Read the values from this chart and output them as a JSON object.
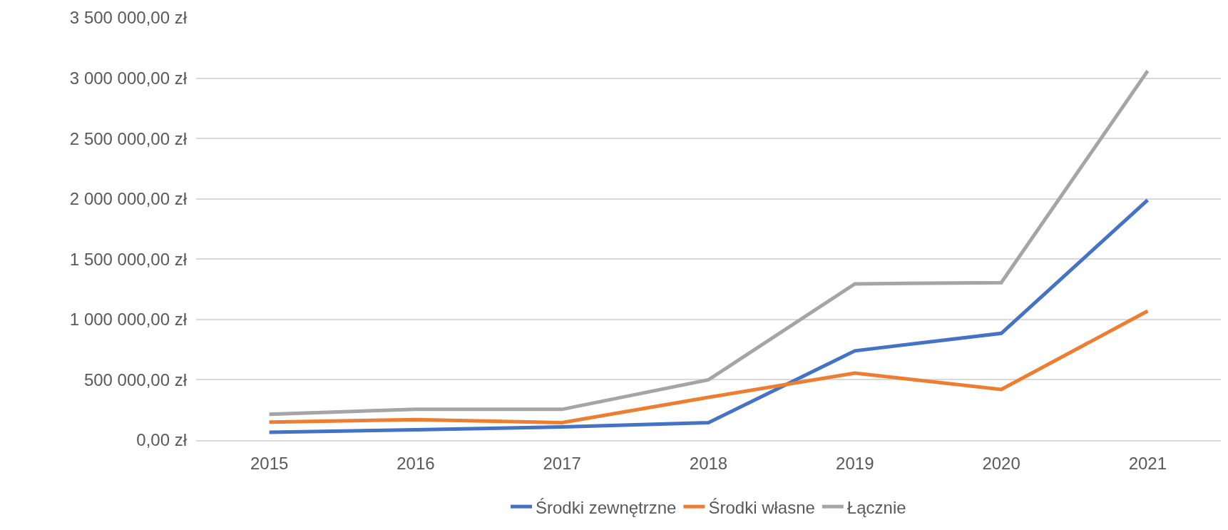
{
  "chart_data": {
    "type": "line",
    "categories": [
      "2015",
      "2016",
      "2017",
      "2018",
      "2019",
      "2020",
      "2021"
    ],
    "series": [
      {
        "name": "Środki zewnętrzne",
        "color": "#4472c4",
        "values": [
          65000,
          85000,
          110000,
          145000,
          740000,
          885000,
          1990000
        ]
      },
      {
        "name": "Środki własne",
        "color": "#ed7d31",
        "values": [
          150000,
          170000,
          145000,
          355000,
          555000,
          420000,
          1070000
        ]
      },
      {
        "name": "Łącznie",
        "color": "#a5a5a5",
        "values": [
          215000,
          255000,
          255000,
          500000,
          1295000,
          1305000,
          3060000
        ]
      }
    ],
    "ylim": [
      0,
      3500000
    ],
    "yticks": [
      {
        "value": 0,
        "label": "0,00 zł"
      },
      {
        "value": 500000,
        "label": "500 000,00 zł"
      },
      {
        "value": 1000000,
        "label": "1 000 000,00 zł"
      },
      {
        "value": 1500000,
        "label": "1 500 000,00 zł"
      },
      {
        "value": 2000000,
        "label": "2 000 000,00 zł"
      },
      {
        "value": 2500000,
        "label": "2 500 000,00 zł"
      },
      {
        "value": 3000000,
        "label": "3 000 000,00 zł"
      },
      {
        "value": 3500000,
        "label": "3 500 000,00 zł"
      }
    ],
    "grid": "y",
    "legend": "bottom",
    "marker": "none",
    "line_style": "solid"
  }
}
